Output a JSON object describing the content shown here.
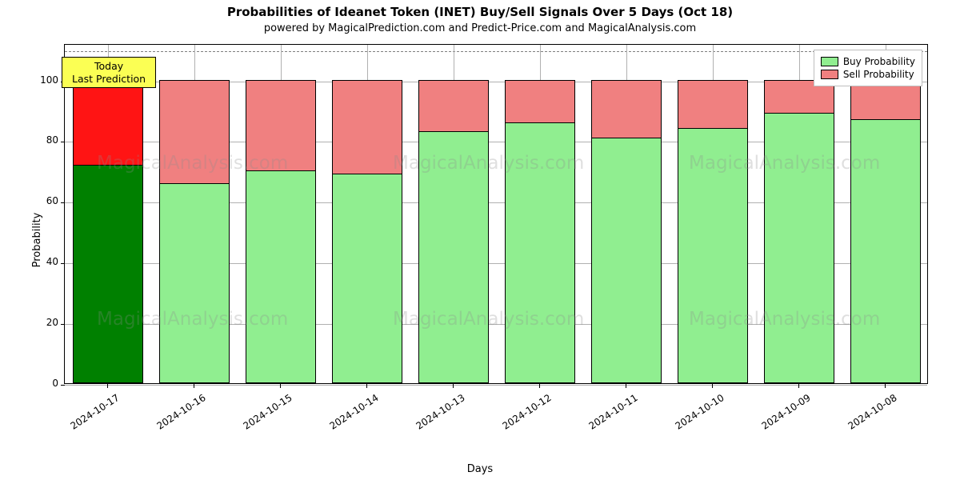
{
  "chart": {
    "type": "stacked-bar",
    "title": "Probabilities of Ideanet Token (INET) Buy/Sell Signals Over 5 Days (Oct 18)",
    "subtitle": "powered by MagicalPrediction.com and Predict-Price.com and MagicalAnalysis.com",
    "xlabel": "Days",
    "ylabel": "Probability",
    "background_color": "#ffffff",
    "plot_border_color": "#000000",
    "grid_color": "#b0b0b0",
    "ylim": [
      0,
      112
    ],
    "yticks": [
      0,
      20,
      40,
      60,
      80,
      100
    ],
    "dashed_ref_value": 110,
    "dashed_ref_color": "#808080",
    "bar_total": 100,
    "bar_width_ratio": 0.82,
    "series": {
      "buy": {
        "label": "Buy Probability",
        "color_default": "#90ee90",
        "color_highlight": "#008000"
      },
      "sell": {
        "label": "Sell Probability",
        "color_default": "#f08080",
        "color_highlight": "#ff1414"
      }
    },
    "categories": [
      "2024-10-17",
      "2024-10-16",
      "2024-10-15",
      "2024-10-14",
      "2024-10-13",
      "2024-10-12",
      "2024-10-11",
      "2024-10-10",
      "2024-10-09",
      "2024-10-08"
    ],
    "buy_values": [
      72,
      66,
      70,
      69,
      83,
      86,
      81,
      84,
      89,
      87
    ],
    "sell_values": [
      28,
      34,
      30,
      31,
      17,
      14,
      19,
      16,
      11,
      13
    ],
    "highlight_index": 0,
    "annotation": {
      "line1": "Today",
      "line2": "Last Prediction",
      "bg": "#fbff54",
      "border": "#000000",
      "attach_index": 0
    },
    "legend": {
      "position": "top-right",
      "bg": "#ffffff",
      "border": "#bfbfbf"
    },
    "watermark": {
      "text": "MagicalAnalysis.com",
      "color": "rgba(140,140,140,0.28)",
      "fontsize": 23
    },
    "title_fontsize": 15,
    "subtitle_fontsize": 13,
    "label_fontsize": 13,
    "tick_fontsize": 12,
    "legend_fontsize": 12,
    "xtick_rotation_deg": 33
  }
}
